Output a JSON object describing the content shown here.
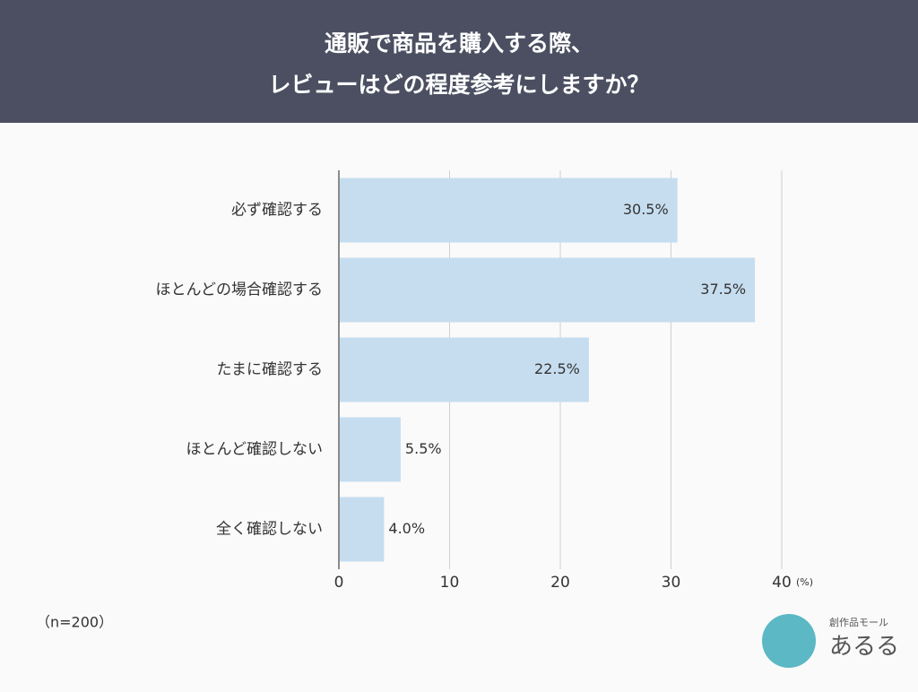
{
  "chart_data": {
    "type": "bar",
    "orientation": "horizontal",
    "title": [
      "通販で商品を購入する際、",
      "レビューはどの程度参考にしますか？"
    ],
    "categories": [
      "必ず確認する",
      "ほとんどの場合確認する",
      "たまに確認する",
      "ほとんど確認しない",
      "全く確認しない"
    ],
    "values": [
      30.5,
      37.5,
      22.5,
      5.5,
      4.0
    ],
    "value_labels": [
      "30.5%",
      "37.5%",
      "22.5%",
      "5.5%",
      "4.0%"
    ],
    "color": "#c6ddef",
    "xlim": [
      0,
      40
    ],
    "xticks": [
      0,
      10,
      20,
      30,
      40
    ],
    "x_unit": "(%)",
    "grid": true,
    "note": "（n=200）"
  },
  "logo": {
    "tagline": "創作品モール",
    "name": "あるる"
  }
}
